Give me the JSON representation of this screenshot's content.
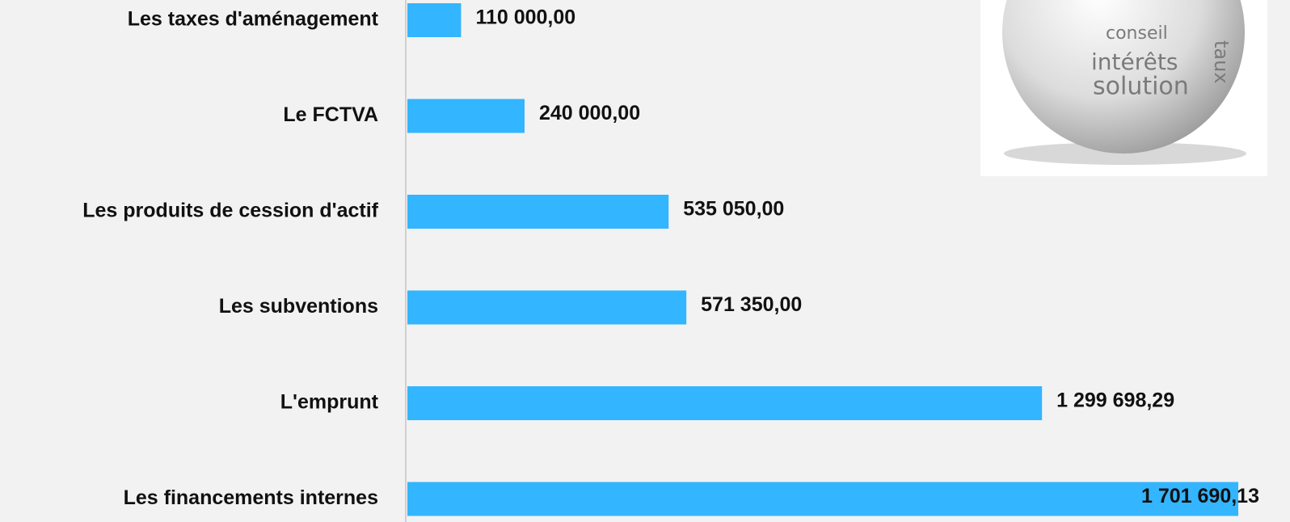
{
  "chart_data": {
    "type": "bar",
    "orientation": "horizontal",
    "categories": [
      "Les taxes d'aménagement",
      "Le FCTVA",
      "Les produits de cession d'actif",
      "Les subventions",
      "L'emprunt",
      "Les financements internes"
    ],
    "values": [
      110000,
      240000,
      535050,
      571350,
      1299698.29,
      1701690.13
    ],
    "value_labels": [
      "110 000,00",
      "240 000,00",
      "535 050,00",
      "571 350,00",
      "1 299 698,29",
      "1 701 690,13"
    ],
    "color": "#33b5ff"
  },
  "illustration": {
    "words": [
      "conseil",
      "intérêts",
      "solution",
      "taux"
    ]
  }
}
